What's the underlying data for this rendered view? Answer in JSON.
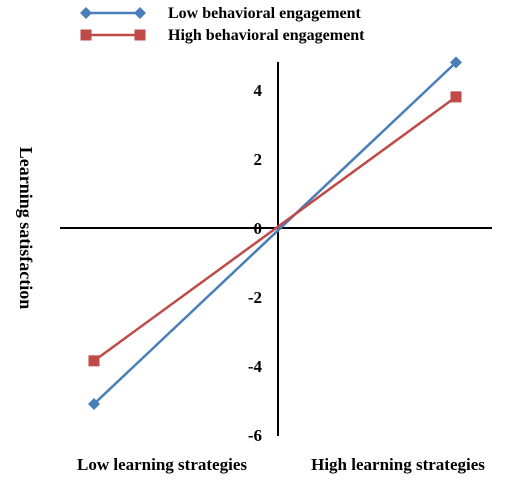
{
  "chart_data": {
    "type": "line",
    "categories": [
      "Low learning strategies",
      "High learning strategies"
    ],
    "series": [
      {
        "name": "Low behavioral engagement",
        "values": [
          -5.1,
          4.8
        ],
        "color": "#4a7ebb",
        "marker": "diamond"
      },
      {
        "name": "High behavioral engagement",
        "values": [
          -3.85,
          3.8
        ],
        "color": "#be4b48",
        "marker": "square"
      }
    ],
    "ylabel": "Learning satisfaction",
    "ylim": [
      -6,
      4.8
    ],
    "yticks": [
      "4",
      "2",
      "0",
      "-2",
      "-4",
      "-6"
    ],
    "grid": false,
    "legend": "top-left"
  }
}
